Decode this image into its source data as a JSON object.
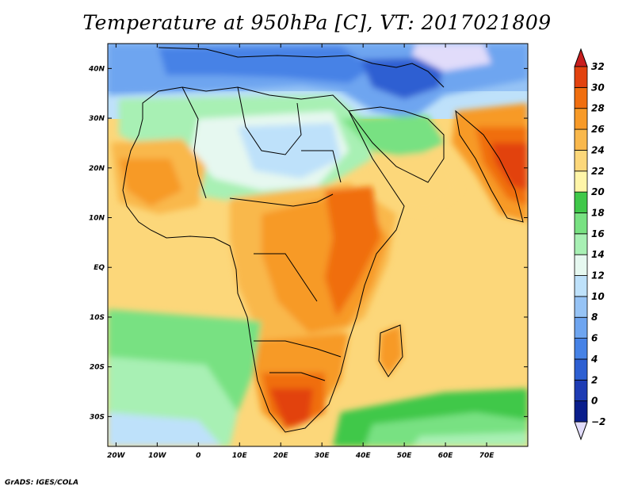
{
  "title": "Temperature at 950hPa [C], VT: 2017021809",
  "credit": "GrADS: IGES/COLA",
  "map": {
    "lon_range": [
      -22,
      80
    ],
    "lat_range": [
      -36,
      45
    ],
    "lon_ticks": [
      {
        "value": -20,
        "label": "20W"
      },
      {
        "value": -10,
        "label": "10W"
      },
      {
        "value": 0,
        "label": "0"
      },
      {
        "value": 10,
        "label": "10E"
      },
      {
        "value": 20,
        "label": "20E"
      },
      {
        "value": 30,
        "label": "30E"
      },
      {
        "value": 40,
        "label": "40E"
      },
      {
        "value": 50,
        "label": "50E"
      },
      {
        "value": 60,
        "label": "60E"
      },
      {
        "value": 70,
        "label": "70E"
      }
    ],
    "lat_ticks": [
      {
        "value": 40,
        "label": "40N"
      },
      {
        "value": 30,
        "label": "30N"
      },
      {
        "value": 20,
        "label": "20N"
      },
      {
        "value": 10,
        "label": "10N"
      },
      {
        "value": 0,
        "label": "EQ"
      },
      {
        "value": -10,
        "label": "10S"
      },
      {
        "value": -20,
        "label": "20S"
      },
      {
        "value": -30,
        "label": "30S"
      }
    ]
  },
  "colorbar": {
    "levels": [
      -2,
      0,
      2,
      4,
      6,
      8,
      10,
      12,
      14,
      16,
      18,
      20,
      22,
      24,
      26,
      28,
      30,
      32
    ],
    "colors": [
      "#0a1e8c",
      "#1e3cb4",
      "#2d5fd2",
      "#4682e6",
      "#6ea5f0",
      "#96c3f5",
      "#bee1fa",
      "#e6f8f0",
      "#a8f0b4",
      "#78e182",
      "#40c84a",
      "#fff5a8",
      "#fcd77a",
      "#f9b84c",
      "#f79a28",
      "#f06e0f",
      "#e2420f"
    ],
    "under_color": "#e1dcfa",
    "over_color": "#c81e1e"
  }
}
